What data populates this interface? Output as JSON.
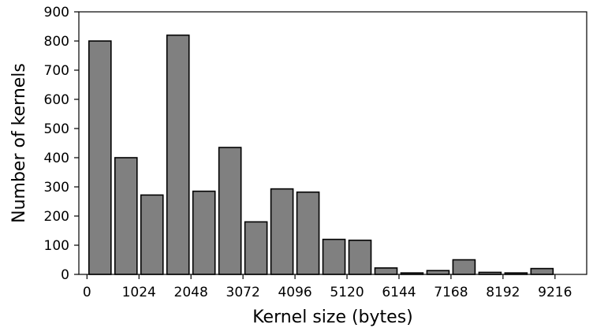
{
  "chart_data": {
    "type": "bar",
    "title": "",
    "xlabel": "Kernel size (bytes)",
    "ylabel": "Number of kernels",
    "xlim": [
      -160,
      9840
    ],
    "ylim": [
      0,
      900
    ],
    "bin_width": 512,
    "bar_color": "#808080",
    "edge_color": "#000000",
    "x_ticks": [
      0,
      1024,
      2048,
      3072,
      4096,
      5120,
      6144,
      7168,
      8192,
      9216
    ],
    "y_ticks": [
      0,
      100,
      200,
      300,
      400,
      500,
      600,
      700,
      800,
      900
    ],
    "x": [
      256,
      768,
      1280,
      1792,
      2304,
      2816,
      3328,
      3840,
      4352,
      4864,
      5376,
      5888,
      6400,
      6912,
      7424,
      7936,
      8448,
      8960
    ],
    "values": [
      800,
      400,
      272,
      820,
      285,
      435,
      180,
      293,
      282,
      120,
      117,
      22,
      5,
      13,
      50,
      7,
      5,
      20
    ],
    "grid": false,
    "legend": "none"
  }
}
